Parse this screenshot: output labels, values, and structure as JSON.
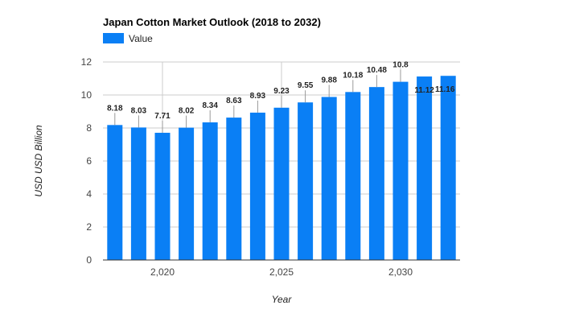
{
  "chart_data": {
    "type": "bar",
    "title": "Japan Cotton Market Outlook (2018 to 2032)",
    "xlabel": "Year",
    "ylabel": "USD USD Billion",
    "legend": {
      "position": "top-left",
      "entries": [
        "Value"
      ]
    },
    "categories": [
      2018,
      2019,
      2020,
      2021,
      2022,
      2023,
      2024,
      2025,
      2026,
      2027,
      2028,
      2029,
      2030,
      2031,
      2032
    ],
    "series": [
      {
        "name": "Value",
        "color": "#0a7ff5",
        "values": [
          8.18,
          8.03,
          7.71,
          8.02,
          8.34,
          8.63,
          8.93,
          9.23,
          9.55,
          9.88,
          10.18,
          10.48,
          10.8,
          11.12,
          11.16
        ]
      }
    ],
    "data_labels": [
      "8.18",
      "8.03",
      "7.71",
      "8.02",
      "8.34",
      "8.63",
      "8.93",
      "9.23",
      "9.55",
      "9.88",
      "10.18",
      "10.48",
      "10.8",
      "11.12",
      "11.16"
    ],
    "x_ticks": [
      2020,
      2025,
      2030
    ],
    "x_tick_labels": [
      "2,020",
      "2,025",
      "2,030"
    ],
    "ylim": [
      0,
      12
    ],
    "y_ticks": [
      0,
      2,
      4,
      6,
      8,
      10,
      12
    ],
    "grid": true
  }
}
